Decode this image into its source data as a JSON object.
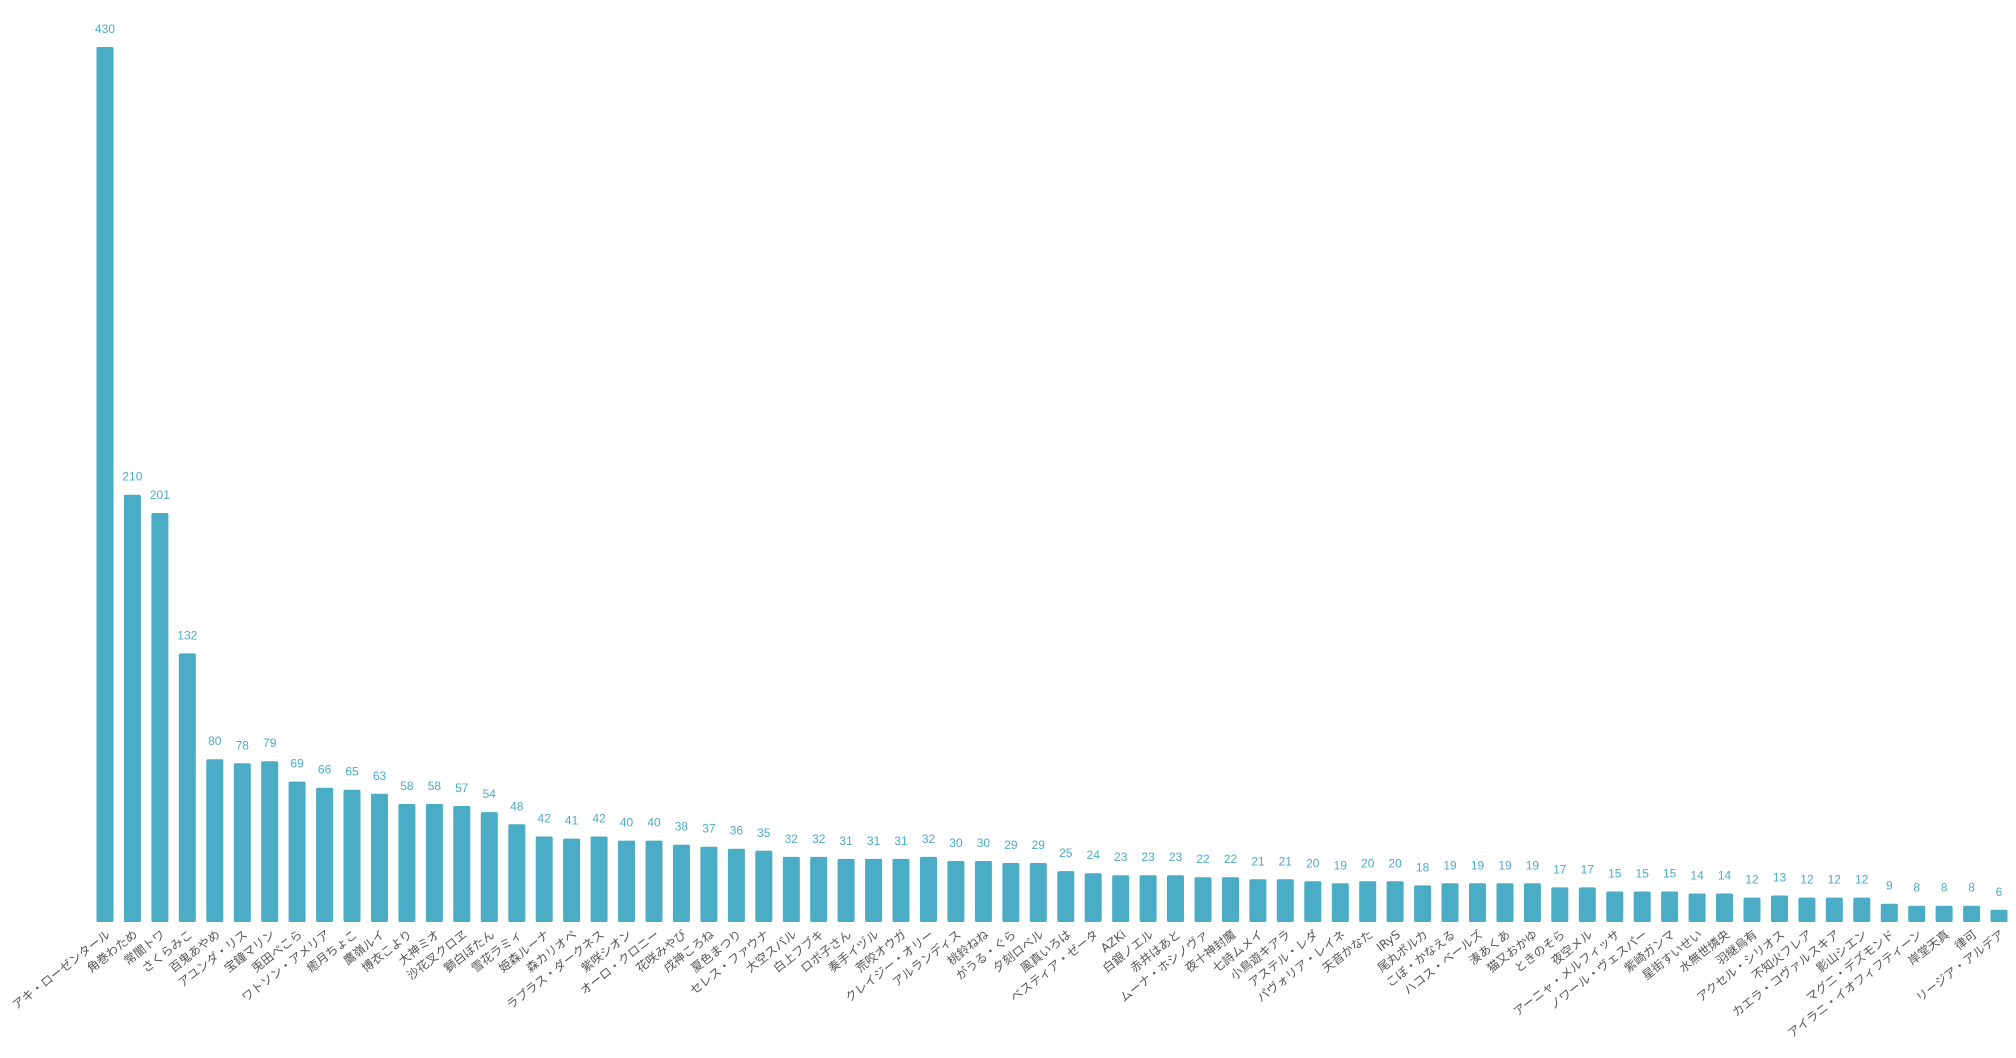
{
  "chart_data": {
    "type": "bar",
    "title": "",
    "xlabel": "",
    "ylabel": "",
    "ylim": [
      0,
      430
    ],
    "grid": false,
    "colors": {
      "bar": "#4bacc6",
      "value_label": "#4bacc6",
      "category_label": "#555555"
    },
    "categories": [
      "アキ・ローゼンタール",
      "角巻わため",
      "常闇トワ",
      "さくらみこ",
      "百鬼あやめ",
      "アユンダ・リス",
      "宝鐘マリン",
      "兎田ぺこら",
      "ワトソン・アメリア",
      "癒月ちょこ",
      "鷹嶺ルイ",
      "博衣こより",
      "大神ミオ",
      "沙花叉クロヱ",
      "獅白ぼたん",
      "雪花ラミィ",
      "姫森ルーナ",
      "森カリオペ",
      "ラプラス・ダークネス",
      "紫咲シオン",
      "オーロ・クロニー",
      "花咲みやび",
      "戌神ころね",
      "夏色まつり",
      "セレス・ファウナ",
      "大空スバル",
      "白上フブキ",
      "ロボ子さん",
      "奏手イヅル",
      "荒咬オウガ",
      "クレイジー・オリー",
      "アルランディス",
      "桃鈴ねね",
      "がうる・ぐら",
      "夕刻ロベル",
      "風真いろは",
      "ベスティア・ゼータ",
      "AZKi",
      "白銀ノエル",
      "赤井はあと",
      "ムーナ・ホシノヴァ",
      "夜十神封魔",
      "七詩ムメイ",
      "小鳥遊キアラ",
      "アステル・レダ",
      "パヴォリア・レイネ",
      "天音かなた",
      "IRyS",
      "尾丸ポルカ",
      "こぼ・かなえる",
      "ハコス・ベールズ",
      "湊あくあ",
      "猫又おかゆ",
      "ときのそら",
      "夜空メル",
      "アーニャ・メルフィッサ",
      "ノワール・ヴェスパー",
      "紫崎ガンマ",
      "星街すいせい",
      "水無世燐央",
      "羽継烏有",
      "アクセル・シリオス",
      "不知火フレア",
      "カエラ・コヴァルスキア",
      "影山シエン",
      "マグニ・デズモンド",
      "アイラニ・イオフィフティーン",
      "岸堂天真",
      "律可",
      "リージア・アルデア"
    ],
    "values": [
      430,
      210,
      201,
      132,
      80,
      78,
      79,
      69,
      66,
      65,
      63,
      58,
      58,
      57,
      54,
      48,
      42,
      41,
      42,
      40,
      40,
      38,
      37,
      36,
      35,
      32,
      32,
      31,
      31,
      31,
      32,
      30,
      30,
      29,
      29,
      25,
      24,
      23,
      23,
      23,
      22,
      22,
      21,
      21,
      20,
      19,
      20,
      20,
      18,
      19,
      19,
      19,
      19,
      17,
      17,
      15,
      15,
      15,
      14,
      14,
      12,
      13,
      12,
      12,
      12,
      9,
      8,
      8,
      8,
      6
    ]
  }
}
